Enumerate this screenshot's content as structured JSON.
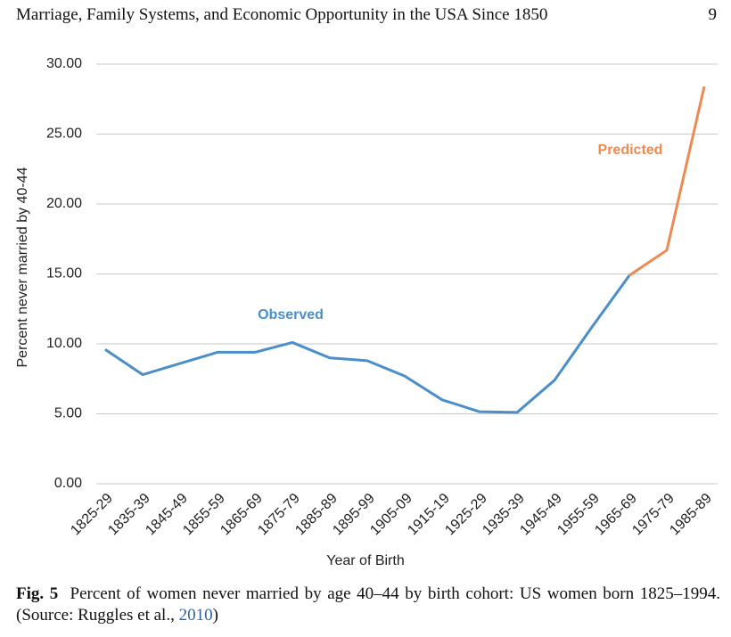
{
  "header": {
    "title": "Marriage, Family Systems, and Economic Opportunity in the USA Since 1850",
    "page": "9"
  },
  "chart_data": {
    "type": "line",
    "x_label": "Year of Birth",
    "y_label": "Percent never married by 40-44",
    "categories": [
      "1825-29",
      "1835-39",
      "1845-49",
      "1855-59",
      "1865-69",
      "1875-79",
      "1885-89",
      "1895-99",
      "1905-09",
      "1915-19",
      "1925-29",
      "1935-39",
      "1945-49",
      "1955-59",
      "1965-69",
      "1975-79",
      "1985-89"
    ],
    "series": [
      {
        "name": "Observed",
        "color": "#4a8fc9",
        "values": [
          9.6,
          7.8,
          8.6,
          9.4,
          9.4,
          10.1,
          9.0,
          8.8,
          7.7,
          6.0,
          5.15,
          5.1,
          7.4,
          11.2,
          14.9,
          null,
          null
        ]
      },
      {
        "name": "Predicted",
        "color": "#ec8a52",
        "values": [
          null,
          null,
          null,
          null,
          null,
          null,
          null,
          null,
          null,
          null,
          null,
          null,
          null,
          null,
          14.9,
          16.7,
          28.4
        ]
      }
    ],
    "ylim": [
      0,
      30
    ],
    "yticks": [
      {
        "value": 0,
        "label": "0.00"
      },
      {
        "value": 5,
        "label": "5.00"
      },
      {
        "value": 10,
        "label": "10.00"
      },
      {
        "value": 15,
        "label": "15.00"
      },
      {
        "value": 20,
        "label": "20.00"
      },
      {
        "value": 25,
        "label": "25.00"
      },
      {
        "value": 30,
        "label": "30.00"
      }
    ],
    "grid": true
  },
  "caption": {
    "label": "Fig. 5",
    "text": "Percent of women never married by age 40–44 by birth cohort: US women born 1825–1994. (Source: Ruggles et al., ",
    "cite": "2010",
    "end": ")"
  }
}
